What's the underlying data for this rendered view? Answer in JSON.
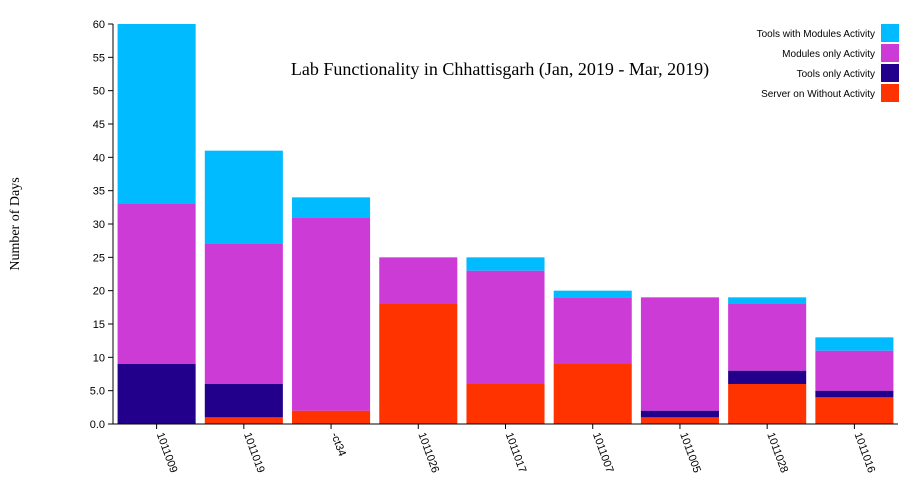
{
  "chart_data": {
    "type": "bar",
    "stacked": true,
    "title": "Lab Functionality in Chhattisgarh (Jan, 2019 - Mar, 2019)",
    "xlabel": "",
    "ylabel": "Number of Days",
    "ylim": [
      0,
      60
    ],
    "yticks": [
      "0.0",
      "5.0",
      "10",
      "15",
      "20",
      "25",
      "30",
      "35",
      "40",
      "45",
      "50",
      "55",
      "60"
    ],
    "categories": [
      "1011009",
      "1011019",
      "ct34",
      "1011026",
      "1011017",
      "1011007",
      "1011005",
      "1011028",
      "1011016"
    ],
    "category_labels": [
      "1011009",
      "1011019",
      "-ct34",
      "1011026",
      "1011017",
      "1011007",
      "1011005",
      "1011028",
      "1011016"
    ],
    "legend_position": "top-right",
    "series": [
      {
        "name": "Server on Without Activity",
        "color": "#ff3300",
        "values": [
          0,
          1,
          2,
          18,
          6,
          9,
          1,
          6,
          4
        ]
      },
      {
        "name": "Tools only Activity",
        "color": "#22008c",
        "values": [
          9,
          5,
          0,
          0,
          0,
          0,
          1,
          2,
          1
        ]
      },
      {
        "name": "Modules only Activity",
        "color": "#cc3bd6",
        "values": [
          24,
          21,
          29,
          7,
          17,
          10,
          17,
          10,
          6
        ]
      },
      {
        "name": "Tools with Modules Activity",
        "color": "#00bbff",
        "values": [
          27,
          14,
          3,
          0,
          2,
          1,
          0,
          1,
          2
        ]
      }
    ],
    "legend_order": [
      "Tools with Modules Activity",
      "Modules only Activity",
      "Tools only Activity",
      "Server on Without Activity"
    ],
    "grid": false
  }
}
